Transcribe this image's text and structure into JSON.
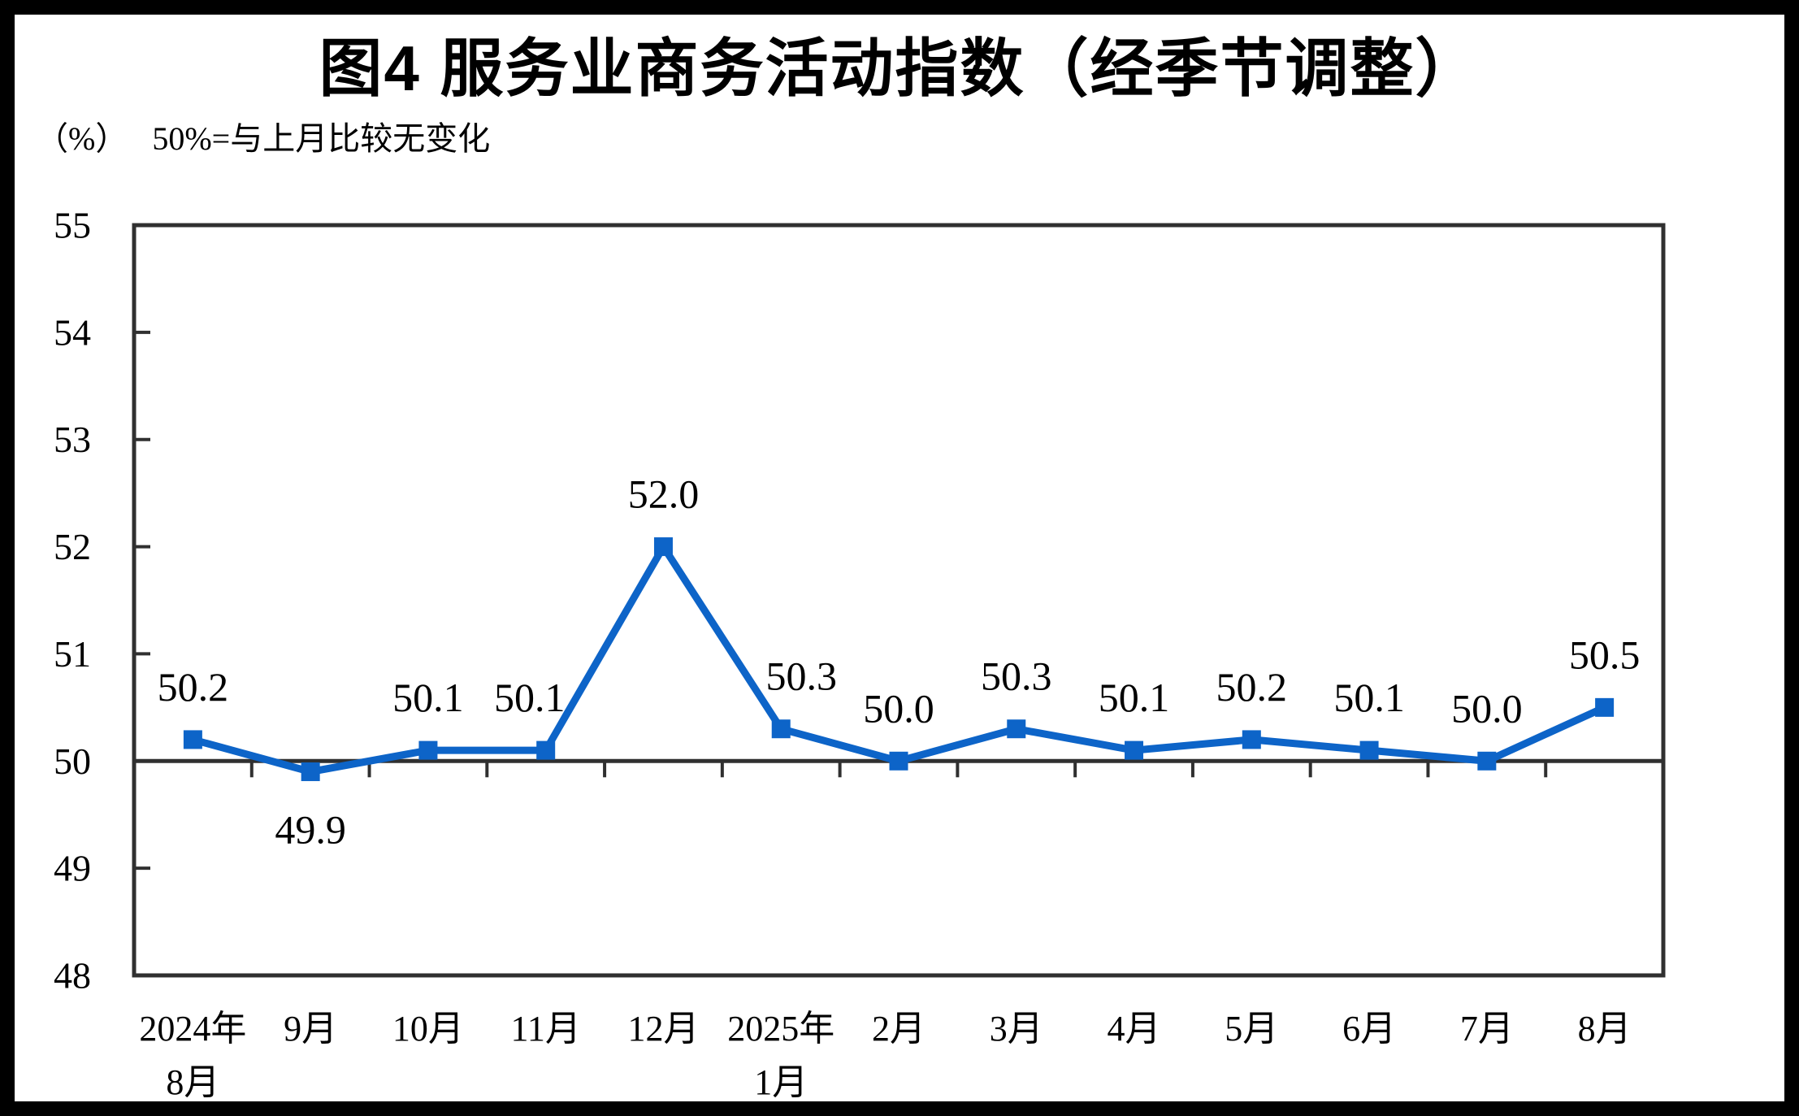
{
  "page": {
    "title": "图4 服务业商务活动指数（经季节调整）",
    "unit_label": "（%）",
    "note": "50%=与上月比较无变化"
  },
  "chart_data": {
    "type": "line",
    "title": "图4 服务业商务活动指数（经季节调整）",
    "unit_note": "（%） 50%=与上月比较无变化",
    "categories": [
      "2024年\n8月",
      "9月",
      "10月",
      "11月",
      "12月",
      "2025年\n1月",
      "2月",
      "3月",
      "4月",
      "5月",
      "6月",
      "7月",
      "8月"
    ],
    "series": [
      {
        "name": "服务业商务活动指数",
        "values": [
          50.2,
          49.9,
          50.1,
          50.1,
          52.0,
          50.3,
          50.0,
          50.3,
          50.1,
          50.2,
          50.1,
          50.0,
          50.5
        ]
      }
    ],
    "data_labels": [
      "50.2",
      "49.9",
      "50.1",
      "50.1",
      "52.0",
      "50.3",
      "50.0",
      "50.3",
      "50.1",
      "50.2",
      "50.1",
      "50.0",
      "50.5"
    ],
    "label_below_indices": [
      1
    ],
    "ylim": [
      48,
      55
    ],
    "yticks": [
      48,
      49,
      50,
      51,
      52,
      53,
      54,
      55
    ],
    "x_axis_cross_at": 50,
    "grid": false,
    "legend_position": "none",
    "line_color": "#0d64c8",
    "axis_color": "#303030",
    "label_color": "#000000"
  }
}
